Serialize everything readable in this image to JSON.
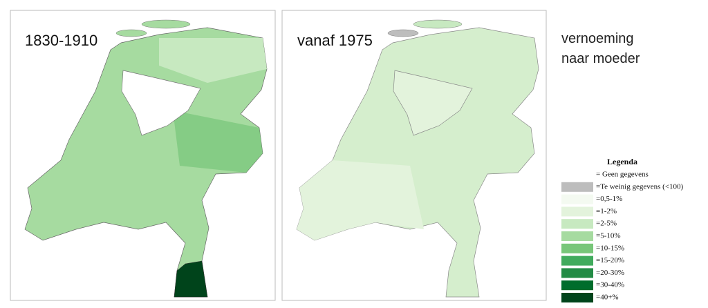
{
  "panels": [
    {
      "title": "1830-1910"
    },
    {
      "title": "vanaf 1975"
    }
  ],
  "caption": [
    "vernoeming",
    "naar moeder"
  ],
  "legend": {
    "title": "Legenda",
    "items": [
      {
        "label": "= Geen gegevens",
        "color": "#ffffff"
      },
      {
        "label": "=Te weinig gegevens (<100)",
        "color": "#bdbdbd"
      },
      {
        "label": "=0,5-1%",
        "color": "#f4faf1"
      },
      {
        "label": "=1-2%",
        "color": "#e3f3dc"
      },
      {
        "label": "=2-5%",
        "color": "#c7e9c0"
      },
      {
        "label": "=5-10%",
        "color": "#a6dba0"
      },
      {
        "label": "=10-15%",
        "color": "#78c679"
      },
      {
        "label": "=15-20%",
        "color": "#41ab5d"
      },
      {
        "label": "=20-30%",
        "color": "#238b45"
      },
      {
        "label": "=30-40%",
        "color": "#006d2c"
      },
      {
        "label": "=40+%",
        "color": "#00441b"
      }
    ]
  }
}
